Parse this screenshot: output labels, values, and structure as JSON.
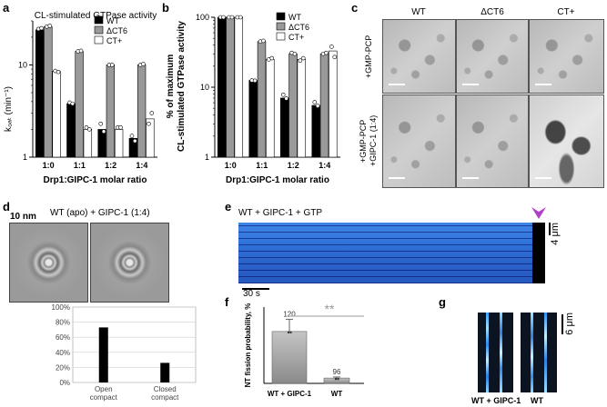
{
  "panels": {
    "a": "a",
    "b": "b",
    "c": "c",
    "d": "d",
    "e": "e",
    "f": "f",
    "g": "g"
  },
  "panel_a": {
    "title": "CL-stimulated GTPase activity",
    "ylabel": "k₀ₐₜ (min⁻¹)",
    "xlabel": "Drp1:GIPC-1 molar ratio",
    "yticks": [
      "1",
      "10"
    ],
    "legend": [
      "WT",
      "ΔCT6",
      "CT+"
    ]
  },
  "panel_b": {
    "ylabel_line1": "% of maximum",
    "ylabel_line2": "CL-stimulated GTPase activity",
    "xlabel": "Drp1:GIPC-1 molar ratio",
    "yticks": [
      "1",
      "10",
      "100"
    ],
    "legend": [
      "WT",
      "ΔCT6",
      "CT+"
    ]
  },
  "panel_c": {
    "columns": [
      "WT",
      "ΔCT6",
      "CT+"
    ],
    "row1": "+GMP-PCP",
    "row2_line1": "+GMP-PCP",
    "row2_line2": "+GIPC-1 (1:4)"
  },
  "panel_d": {
    "scale": "10 nm",
    "title": "WT (apo) + GIPC-1 (1:4)",
    "yticks": [
      "100%",
      "80%",
      "60%",
      "40%",
      "20%",
      "0%"
    ],
    "categories": [
      [
        "Open",
        "compact"
      ],
      [
        "Closed",
        "compact"
      ]
    ]
  },
  "panel_e": {
    "title": "WT + GIPC-1 + GTP",
    "scale_y": "4 μm",
    "scale_x": "30 s"
  },
  "panel_f": {
    "ylabel": "NT fission probability, %",
    "significance": "**",
    "categories": [
      "WT + GIPC-1",
      "WT"
    ],
    "n_labels": [
      "120",
      "96"
    ]
  },
  "panel_g": {
    "scale": "6 μm",
    "labels": [
      "WT + GIPC-1",
      "WT"
    ]
  },
  "colors": {
    "wt": "#000000",
    "dct6": "#999999",
    "ctplus": "#ffffff",
    "arrow": "#b23fc9"
  },
  "chart_data": [
    {
      "type": "bar",
      "title": "CL-stimulated GTPase activity",
      "xlabel": "Drp1:GIPC-1 molar ratio",
      "ylabel": "kcat (min-1)",
      "yscale": "log",
      "ylim": [
        1,
        30
      ],
      "categories": [
        "1:0",
        "1:1",
        "1:2",
        "1:4"
      ],
      "series": [
        {
          "name": "WT",
          "values": [
            24,
            3.8,
            2.0,
            1.6
          ]
        },
        {
          "name": "ΔCT6",
          "values": [
            26,
            14,
            10,
            10
          ]
        },
        {
          "name": "CT+",
          "values": [
            8.5,
            2.0,
            2.0,
            2.6
          ]
        }
      ],
      "points": {
        "WT": [
          [
            24.5,
            25
          ],
          [
            3.9,
            3.8
          ],
          [
            2.3,
            1.9
          ],
          [
            1.7,
            1.5
          ]
        ],
        "ΔCT6": [
          [
            26,
            26.5
          ],
          [
            14,
            14.2
          ],
          [
            10,
            10
          ],
          [
            10,
            10.2
          ]
        ],
        "CT+": [
          [
            8.6,
            8.4
          ],
          [
            2.1,
            2.0
          ],
          [
            2.1,
            2.1
          ],
          [
            2.3,
            3.0
          ]
        ]
      },
      "legend": "top-right"
    },
    {
      "type": "bar",
      "xlabel": "Drp1:GIPC-1 molar ratio",
      "ylabel": "% of maximum CL-stimulated GTPase activity",
      "yscale": "log",
      "ylim": [
        1,
        100
      ],
      "categories": [
        "1:0",
        "1:1",
        "1:2",
        "1:4"
      ],
      "series": [
        {
          "name": "WT",
          "values": [
            100,
            12.5,
            7,
            5.5
          ]
        },
        {
          "name": "ΔCT6",
          "values": [
            100,
            45,
            30,
            30
          ]
        },
        {
          "name": "CT+",
          "values": [
            100,
            25,
            25,
            33
          ]
        }
      ],
      "points": {
        "WT": [
          [
            100,
            100
          ],
          [
            12.5,
            12.4
          ],
          [
            7.8,
            6.9
          ],
          [
            6.1,
            5.4
          ]
        ],
        "ΔCT6": [
          [
            100,
            100
          ],
          [
            45,
            46
          ],
          [
            31,
            30
          ],
          [
            30,
            31
          ]
        ],
        "CT+": [
          [
            100,
            100
          ],
          [
            25,
            26
          ],
          [
            24,
            26
          ],
          [
            38,
            27
          ]
        ]
      },
      "legend": "top-right"
    },
    {
      "type": "bar",
      "categories": [
        "Open compact",
        "Closed compact"
      ],
      "values": [
        73,
        26
      ],
      "ylim": [
        0,
        100
      ]
    },
    {
      "type": "bar",
      "ylabel": "NT fission probability, %",
      "categories": [
        "WT + GIPC-1",
        "WT"
      ],
      "values": [
        34,
        3.5
      ],
      "errors": [
        8,
        0.7
      ],
      "n": [
        "120",
        "96"
      ],
      "ylim": [
        0,
        50
      ]
    }
  ]
}
